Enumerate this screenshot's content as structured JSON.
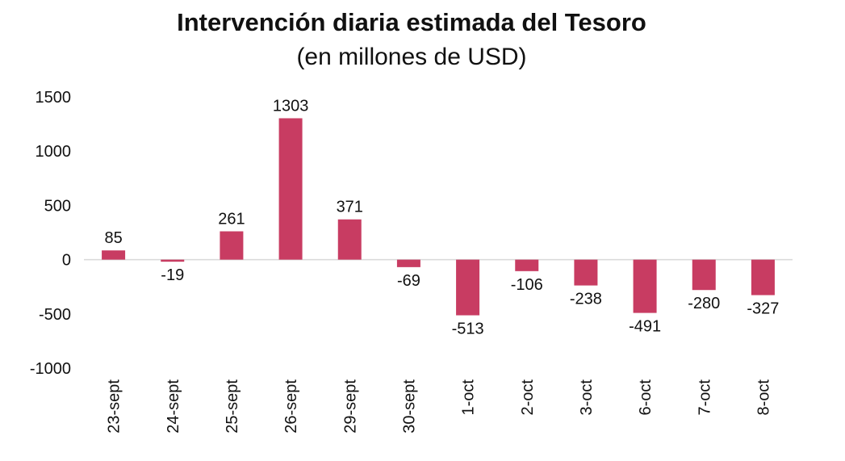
{
  "chart_data": {
    "type": "bar",
    "title": "Intervención diaria estimada del Tesoro",
    "subtitle": "(en millones de USD)",
    "categories": [
      "23-sept",
      "24-sept",
      "25-sept",
      "26-sept",
      "29-sept",
      "30-sept",
      "1-oct",
      "2-oct",
      "3-oct",
      "6-oct",
      "7-oct",
      "8-oct"
    ],
    "values": [
      85,
      -19,
      261,
      1303,
      371,
      -69,
      -513,
      -106,
      -238,
      -491,
      -280,
      -327
    ],
    "value_labels": [
      "85",
      "-19",
      "261",
      "1303",
      "371",
      "-69",
      "-513",
      "-106",
      "-238",
      "-491",
      "-280",
      "-327"
    ],
    "yticks": [
      1500,
      1000,
      500,
      0,
      -500,
      -1000
    ],
    "ylim": [
      -1000,
      1500
    ],
    "xlabel": "",
    "ylabel": "",
    "bar_color": "#c83c62",
    "axis_color": "#d9d9d9"
  }
}
